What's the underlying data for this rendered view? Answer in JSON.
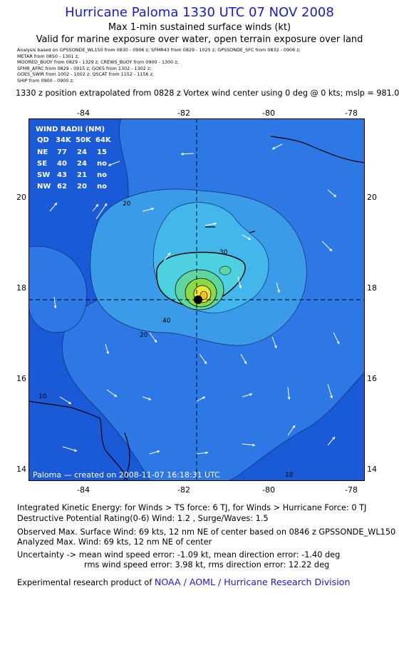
{
  "header": {
    "title": "Hurricane Paloma 1330 UTC 07 NOV 2008",
    "subtitle": "Max 1-min sustained surface winds (kt)",
    "valid": "Valid for marine exposure over water, open terrain exposure over land",
    "analysis_lines": [
      "Analysis based on  GPSSONDE_WL150 from 0830 - 0906 z;  SFMR43 from 0829 - 1025 z;  GPSSONDE_SFC from 0832 - 0906 z;",
      "METAR from 0850 - 1301 z;",
      "MOORED_BUOY from 0829 - 1329 z;  CREWS_BUOY from 0900 - 1300 z;",
      "SFMR_AFRC from 0829 - 0915 z;  GOES from 1302 - 1302 z;",
      "GOES_SWIR from 1002 - 1002 z;  QSCAT from 1152 - 1156 z;",
      "SHIP from 0900 - 0900 z;"
    ],
    "extrapolation": "1330 z position extrapolated from 0828 z Vortex wind center using 0 deg @ 0 kts; mslp = 981.0 mb"
  },
  "map": {
    "lon_labels": [
      "-84",
      "-82",
      "-80",
      "-78"
    ],
    "lat_labels": [
      "20",
      "18",
      "16",
      "14"
    ],
    "contour_labels": [
      "20",
      "30",
      "20",
      "40",
      "10",
      "10"
    ],
    "credit": "Paloma  — created on 2008-11-07  16:18:31 UTC",
    "colors": {
      "ocean_deep": "#1a5ad6",
      "band_10": "#2e78e6",
      "band_20": "#3c9be8",
      "band_30": "#43b7ec",
      "band_40": "#4dd0e0",
      "band_50": "#5fd6a0",
      "band_60": "#8cd94a",
      "core": "#e8e838"
    }
  },
  "wind_radii": {
    "header": "WIND RADII (NM)",
    "columns": [
      "QD",
      "34K",
      "50K",
      "64K"
    ],
    "rows": [
      {
        "qd": "NE",
        "k34": "77",
        "k50": "24",
        "k64": "15"
      },
      {
        "qd": "SE",
        "k34": "40",
        "k50": "24",
        "k64": "no"
      },
      {
        "qd": "SW",
        "k34": "43",
        "k50": "21",
        "k64": "no"
      },
      {
        "qd": "NW",
        "k34": "62",
        "k50": "20",
        "k64": "no"
      }
    ]
  },
  "footer": {
    "ike": "Integrated Kinetic Energy:  for Winds > TS force: 6 TJ,  for Winds > Hurricane Force: 0 TJ",
    "dpr": "Destructive Potential Rating(0-6)   Wind: 1.2 , Surge/Waves: 1.5",
    "observed": "Observed Max. Surface Wind: 69 kts, 12 nm NE of center based on 0846 z GPSSONDE_WL150",
    "analyzed": "Analyzed Max. Wind: 69 kts, 12 nm NE of center",
    "uncertainty1": "Uncertainty -> mean wind speed error:  -1.09 kt,   mean direction error:  -1.40 deg",
    "uncertainty2": "rms wind speed error: 3.98 kt,   rms direction error: 12.22 deg",
    "product_prefix": "Experimental research product of ",
    "product_link": "NOAA / AOML / Hurricane Research Division"
  }
}
